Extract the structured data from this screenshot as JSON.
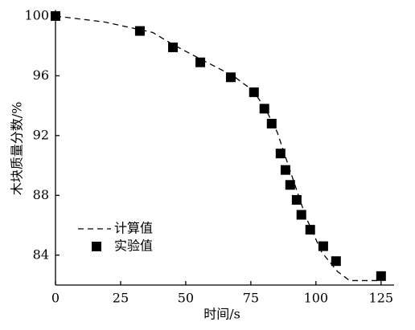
{
  "chart_data": {
    "type": "line",
    "x_label": "时间/s",
    "y_label": "木块质量分数/%",
    "xlim": [
      0,
      130
    ],
    "ylim": [
      82,
      100.4
    ],
    "xticks": [
      0,
      25,
      50,
      75,
      100,
      125
    ],
    "yticks": [
      84,
      88,
      92,
      96,
      100
    ],
    "legend": "lower left",
    "series": [
      {
        "name": "计算值",
        "color": "#000000",
        "dash": true,
        "x": [
          0,
          18.8,
          37.3,
          45,
          55.9,
          68.2,
          75.9,
          80.6,
          85.2,
          89.8,
          96,
          102.2,
          108.3,
          112.9,
          124.7
        ],
        "values": [
          100,
          99.6,
          98.9,
          98.1,
          97.1,
          96,
          95,
          93.8,
          92.2,
          89.8,
          86.6,
          84.2,
          82.9,
          82.3,
          82.3
        ]
      },
      {
        "name": "实验值",
        "color": "#000000",
        "marker": "square",
        "x": [
          0,
          32.4,
          45.1,
          55.6,
          67.3,
          76.2,
          80.2,
          83,
          86.4,
          88.3,
          90.1,
          92.6,
          94.4,
          97.8,
          102.8,
          107.7,
          125
        ],
        "values": [
          100,
          99,
          97.9,
          96.9,
          95.9,
          94.9,
          93.8,
          92.8,
          90.8,
          89.7,
          88.7,
          87.7,
          86.7,
          85.7,
          84.6,
          83.6,
          82.6
        ]
      }
    ]
  }
}
